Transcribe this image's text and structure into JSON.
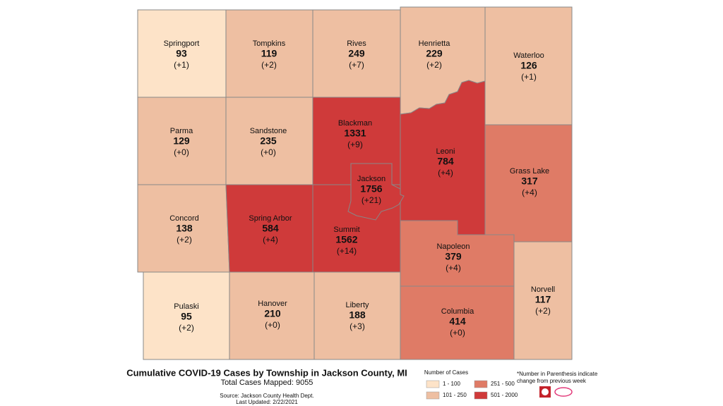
{
  "townships": [
    {
      "name": "Springport",
      "cases": 93,
      "change": "(+1)",
      "color": "#fde3c8"
    },
    {
      "name": "Tompkins",
      "cases": 119,
      "change": "(+2)",
      "color": "#eebfa2"
    },
    {
      "name": "Rives",
      "cases": 249,
      "change": "(+7)",
      "color": "#eebfa2"
    },
    {
      "name": "Henrietta",
      "cases": 229,
      "change": "(+2)",
      "color": "#eebfa2"
    },
    {
      "name": "Waterloo",
      "cases": 126,
      "change": "(+1)",
      "color": "#eebfa2"
    },
    {
      "name": "Parma",
      "cases": 129,
      "change": "(+0)",
      "color": "#eebfa2"
    },
    {
      "name": "Sandstone",
      "cases": 235,
      "change": "(+0)",
      "color": "#eebfa2"
    },
    {
      "name": "Blackman",
      "cases": 1331,
      "change": "(+9)",
      "color": "#cf3a3a"
    },
    {
      "name": "Leoni",
      "cases": 784,
      "change": "(+4)",
      "color": "#cf3a3a"
    },
    {
      "name": "Grass Lake",
      "cases": 317,
      "change": "(+4)",
      "color": "#df7b66"
    },
    {
      "name": "Concord",
      "cases": 138,
      "change": "(+2)",
      "color": "#eebfa2"
    },
    {
      "name": "Spring Arbor",
      "cases": 584,
      "change": "(+4)",
      "color": "#cf3a3a"
    },
    {
      "name": "Summit",
      "cases": 1562,
      "change": "(+14)",
      "color": "#cf3a3a"
    },
    {
      "name": "Jackson",
      "cases": 1756,
      "change": "(+21)",
      "color": "#cf3a3a"
    },
    {
      "name": "Napoleon",
      "cases": 379,
      "change": "(+4)",
      "color": "#df7b66"
    },
    {
      "name": "Pulaski",
      "cases": 95,
      "change": "(+2)",
      "color": "#fde3c8"
    },
    {
      "name": "Hanover",
      "cases": 210,
      "change": "(+0)",
      "color": "#eebfa2"
    },
    {
      "name": "Liberty",
      "cases": 188,
      "change": "(+3)",
      "color": "#eebfa2"
    },
    {
      "name": "Columbia",
      "cases": 414,
      "change": "(+0)",
      "color": "#df7b66"
    },
    {
      "name": "Norvell",
      "cases": 117,
      "change": "(+2)",
      "color": "#eebfa2"
    }
  ],
  "caption": {
    "title": "Cumulative COVID-19 Cases by Township in Jackson County, MI",
    "total": "Total Cases Mapped: 9055",
    "source": "Source: Jackson County Health Dept.",
    "updated": "Last Updated: 2/22/2021"
  },
  "legend": {
    "title": "Number of Cases",
    "items": [
      {
        "label": "1 - 100",
        "color": "#fde3c8"
      },
      {
        "label": "101 - 250",
        "color": "#eebfa2"
      },
      {
        "label": "251 - 500",
        "color": "#df7b66"
      },
      {
        "label": "501 - 2000",
        "color": "#cf3a3a"
      }
    ]
  },
  "footnote": [
    "*Number in Parenthesis indicate",
    "change from previous week"
  ]
}
